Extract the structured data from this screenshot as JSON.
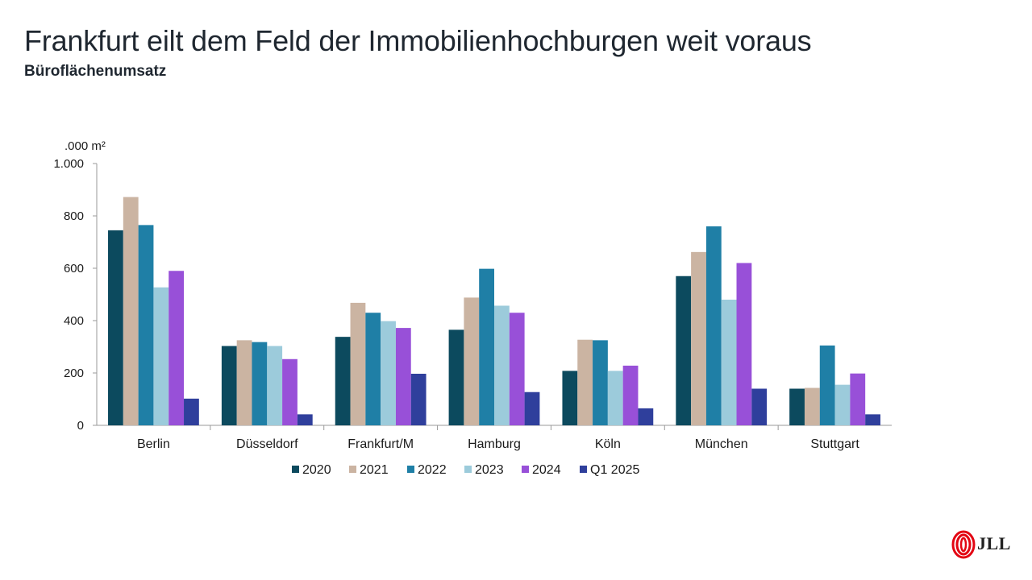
{
  "header": {
    "title": "Frankfurt eilt dem Feld der Immobilienhochburgen weit voraus",
    "subtitle": "Büroflächenumsatz"
  },
  "brand": {
    "name": "JLL",
    "logo_icon": "jll-flame-logo-icon",
    "color": "#e30613"
  },
  "chart_data": {
    "type": "bar",
    "title": "",
    "xlabel": "",
    "ylabel": ".000 m²",
    "ylim": [
      0,
      1000
    ],
    "yticks": [
      0,
      200,
      400,
      600,
      800,
      1000
    ],
    "ytick_labels": [
      "0",
      "200",
      "400",
      "600",
      "800",
      "1.000"
    ],
    "grid": false,
    "legend_position": "bottom",
    "categories": [
      "Berlin",
      "Düsseldorf",
      "Frankfurt/M",
      "Hamburg",
      "Köln",
      "München",
      "Stuttgart"
    ],
    "series": [
      {
        "name": "2020",
        "color": "#0c4a5e",
        "values": [
          745,
          303,
          338,
          365,
          208,
          570,
          140
        ]
      },
      {
        "name": "2021",
        "color": "#cbb4a2",
        "values": [
          872,
          325,
          468,
          488,
          327,
          662,
          143
        ]
      },
      {
        "name": "2022",
        "color": "#1f7fa6",
        "values": [
          765,
          318,
          430,
          598,
          325,
          760,
          305
        ]
      },
      {
        "name": "2023",
        "color": "#9ccbdb",
        "values": [
          527,
          303,
          398,
          457,
          208,
          480,
          155
        ]
      },
      {
        "name": "2024",
        "color": "#9850d8",
        "values": [
          590,
          253,
          372,
          430,
          228,
          620,
          198
        ]
      },
      {
        "name": "Q1 2025",
        "color": "#2f3f9c",
        "values": [
          102,
          42,
          197,
          127,
          65,
          140,
          42
        ]
      }
    ]
  }
}
